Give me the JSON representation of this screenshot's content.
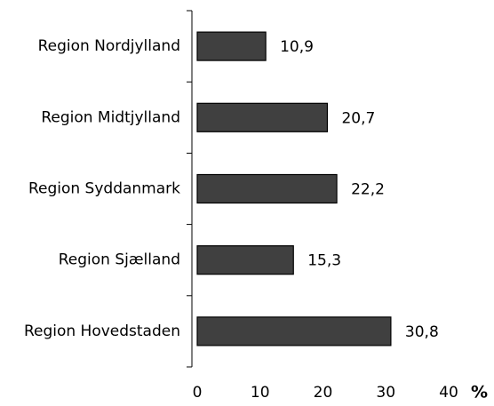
{
  "chart_data": {
    "type": "bar",
    "orientation": "horizontal",
    "categories": [
      "Region Nordjylland",
      "Region Midtjylland",
      "Region Syddanmark",
      "Region Sjælland",
      "Region Hovedstaden"
    ],
    "values": [
      10.9,
      20.7,
      22.2,
      15.3,
      30.8
    ],
    "value_labels": [
      "10,9",
      "20,7",
      "22,2",
      "15,3",
      "30,8"
    ],
    "color": "#404040",
    "xlim": [
      0,
      40
    ],
    "xticks": [
      0,
      10,
      20,
      30,
      40
    ],
    "x_label": "%"
  }
}
